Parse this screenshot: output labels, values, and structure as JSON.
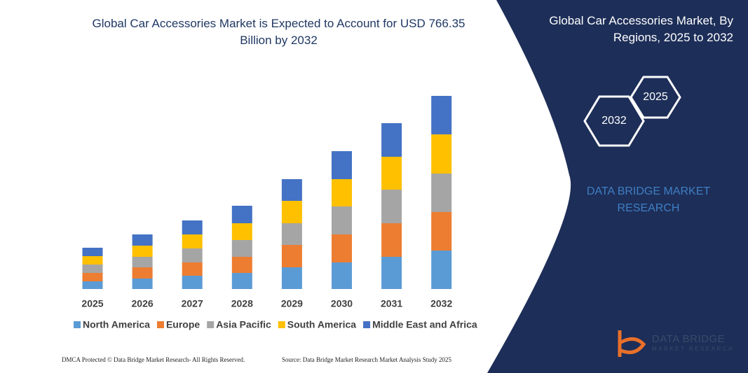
{
  "chart_data": {
    "type": "stacked-bar",
    "title": "Global Car Accessories Market is Expected to Account for USD 766.35 Billion by 2032",
    "categories": [
      "2025",
      "2026",
      "2027",
      "2028",
      "2029",
      "2030",
      "2031",
      "2032"
    ],
    "series": [
      {
        "name": "North America",
        "color": "#5b9bd5",
        "values": [
          11,
          15,
          19,
          23,
          31,
          38,
          46,
          55
        ]
      },
      {
        "name": "Europe",
        "color": "#ed7d31",
        "values": [
          12,
          16,
          19,
          23,
          32,
          40,
          48,
          55
        ]
      },
      {
        "name": "Asia Pacific",
        "color": "#a5a5a5",
        "values": [
          12,
          15,
          20,
          24,
          31,
          40,
          48,
          55
        ]
      },
      {
        "name": "South America",
        "color": "#ffc000",
        "values": [
          12,
          16,
          20,
          24,
          32,
          39,
          47,
          56
        ]
      },
      {
        "name": "Middle East and Africa",
        "color": "#4472c4",
        "values": [
          12,
          16,
          20,
          25,
          31,
          40,
          48,
          55
        ]
      }
    ],
    "ylim": [
      0,
      276
    ]
  },
  "panel": {
    "title": "Global Car Accessories Market, By Regions, 2025 to 2032",
    "hexagons": [
      "2025",
      "2032"
    ],
    "brand": "DATA BRIDGE MARKET RESEARCH"
  },
  "footer": {
    "left": "DMCA Protected © Data Bridge Market Research-  All Rights Reserved.",
    "right": "Source: Data Bridge Market Research  Market Analysis Study 2025"
  },
  "logo": {
    "name": "DATA BRIDGE",
    "sub": "MARKET RESEARCH"
  }
}
